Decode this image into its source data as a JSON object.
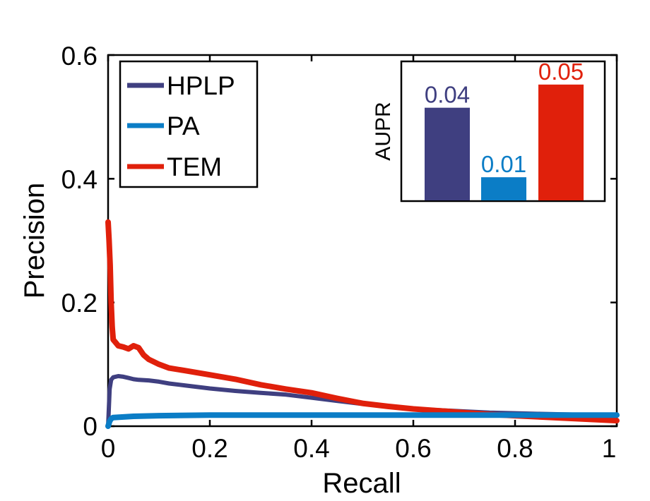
{
  "chart_data": [
    {
      "type": "line",
      "title": "",
      "xlabel": "Recall",
      "ylabel": "Precision",
      "xlim": [
        0,
        1
      ],
      "ylim": [
        0,
        0.6
      ],
      "xticks": [
        0,
        0.2,
        0.4,
        0.6,
        0.8,
        1
      ],
      "xtick_labels": [
        "0",
        "0.2",
        "0.4",
        "0.6",
        "0.8",
        "1"
      ],
      "yticks": [
        0,
        0.2,
        0.4,
        0.6
      ],
      "ytick_labels": [
        "0",
        "0.2",
        "0.4",
        "0.6"
      ],
      "grid": false,
      "legend_position": "top-left",
      "series": [
        {
          "name": "HPLP",
          "color": "#3f3f80",
          "x": [
            0,
            0.003,
            0.006,
            0.01,
            0.02,
            0.03,
            0.04,
            0.05,
            0.06,
            0.08,
            0.1,
            0.12,
            0.15,
            0.2,
            0.25,
            0.3,
            0.35,
            0.4,
            0.45,
            0.5,
            0.55,
            0.6,
            0.65,
            0.7,
            0.75,
            0.8,
            0.85,
            0.9,
            0.95,
            1.0
          ],
          "y": [
            0.0,
            0.06,
            0.075,
            0.079,
            0.081,
            0.08,
            0.078,
            0.076,
            0.075,
            0.074,
            0.072,
            0.069,
            0.066,
            0.061,
            0.057,
            0.054,
            0.051,
            0.046,
            0.041,
            0.036,
            0.032,
            0.028,
            0.026,
            0.024,
            0.022,
            0.021,
            0.02,
            0.019,
            0.018,
            0.017
          ]
        },
        {
          "name": "PA",
          "color": "#0b7dc6",
          "x": [
            0,
            0.003,
            0.006,
            0.01,
            0.03,
            0.05,
            0.1,
            0.2,
            0.3,
            0.4,
            0.5,
            0.6,
            0.7,
            0.8,
            0.9,
            1.0
          ],
          "y": [
            0.0,
            0.008,
            0.012,
            0.014,
            0.015,
            0.016,
            0.017,
            0.018,
            0.018,
            0.018,
            0.018,
            0.018,
            0.018,
            0.018,
            0.018,
            0.018
          ]
        },
        {
          "name": "TEM",
          "color": "#e0200b",
          "x": [
            0,
            0.002,
            0.004,
            0.006,
            0.008,
            0.01,
            0.015,
            0.02,
            0.03,
            0.04,
            0.05,
            0.06,
            0.07,
            0.08,
            0.1,
            0.12,
            0.15,
            0.2,
            0.25,
            0.3,
            0.35,
            0.4,
            0.45,
            0.5,
            0.55,
            0.6,
            0.65,
            0.7,
            0.75,
            0.8,
            0.85,
            0.9,
            0.95,
            1.0
          ],
          "y": [
            0.33,
            0.3,
            0.26,
            0.2,
            0.16,
            0.14,
            0.135,
            0.13,
            0.128,
            0.125,
            0.13,
            0.127,
            0.115,
            0.108,
            0.1,
            0.094,
            0.09,
            0.083,
            0.076,
            0.067,
            0.06,
            0.054,
            0.045,
            0.037,
            0.032,
            0.028,
            0.025,
            0.022,
            0.019,
            0.017,
            0.015,
            0.013,
            0.011,
            0.009
          ]
        }
      ]
    },
    {
      "type": "bar",
      "title": "",
      "xlabel": "",
      "ylabel": "AUPR",
      "ylim": [
        0,
        0.06
      ],
      "categories": [
        "HPLP",
        "PA",
        "TEM"
      ],
      "values": [
        0.04,
        0.01,
        0.05
      ],
      "value_labels": [
        "0.04",
        "0.01",
        "0.05"
      ],
      "colors": [
        "#3f3f80",
        "#0b7dc6",
        "#e0200b"
      ]
    }
  ]
}
